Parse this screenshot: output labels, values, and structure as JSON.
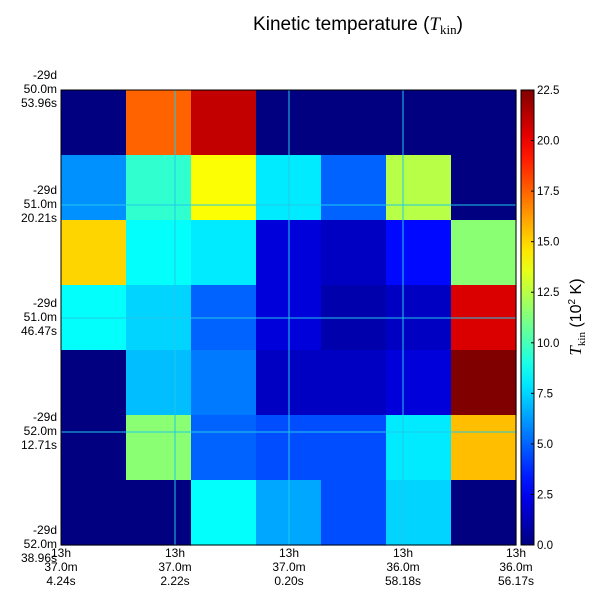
{
  "chart_data": {
    "type": "heatmap",
    "title": "Kinetic temperature (T_kin)",
    "title_parts": {
      "prefix": "Kinetic temperature (",
      "symbol": "T",
      "subscript": "kin",
      "suffix": ")"
    },
    "colorbar_label": {
      "symbol": "T",
      "subscript": "kin",
      "text": "(10",
      "exponent": "2",
      "unit": " K)"
    },
    "colormap": "jet",
    "vmin": 0.0,
    "vmax": 22.5,
    "colorbar_ticks": [
      "0.0",
      "2.5",
      "5.0",
      "7.5",
      "10.0",
      "12.5",
      "15.0",
      "17.5",
      "20.0",
      "22.5"
    ],
    "x_ticks": [
      [
        "13h",
        "37.0m",
        "4.24s"
      ],
      [
        "13h",
        "37.0m",
        "2.22s"
      ],
      [
        "13h",
        "37.0m",
        "0.20s"
      ],
      [
        "13h",
        "36.0m",
        "58.18s"
      ],
      [
        "13h",
        "36.0m",
        "56.17s"
      ]
    ],
    "y_ticks": [
      [
        "-29d",
        "50.0m",
        "53.96s"
      ],
      [
        "-29d",
        "51.0m",
        "20.21s"
      ],
      [
        "-29d",
        "51.0m",
        "46.47s"
      ],
      [
        "-29d",
        "52.0m",
        "12.71s"
      ],
      [
        "-29d",
        "52.0m",
        "38.96s"
      ]
    ],
    "grid": true,
    "grid_color": "#20c8e8",
    "values": [
      [
        0.0,
        17.5,
        21.0,
        0.0,
        0.0,
        0.0,
        0.0
      ],
      [
        6.0,
        9.5,
        14.0,
        8.0,
        5.0,
        12.5,
        0.0
      ],
      [
        15.0,
        8.5,
        8.0,
        2.0,
        1.5,
        3.0,
        11.5
      ],
      [
        8.5,
        7.5,
        5.0,
        2.0,
        1.0,
        1.5,
        20.5
      ],
      [
        0.0,
        7.0,
        5.5,
        1.5,
        1.5,
        2.0,
        22.5
      ],
      [
        0.0,
        11.5,
        5.0,
        4.5,
        4.5,
        8.0,
        15.5
      ],
      [
        0.0,
        0.0,
        8.5,
        6.5,
        4.5,
        7.5,
        0.0
      ]
    ]
  }
}
